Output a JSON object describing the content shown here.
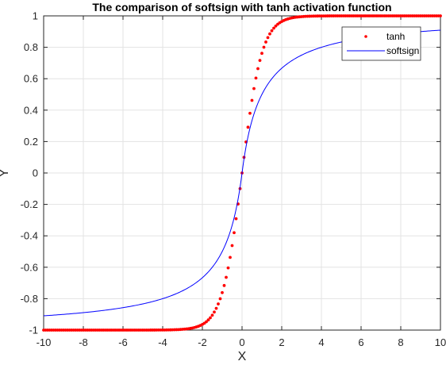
{
  "chart_data": {
    "type": "line",
    "title": "The comparison of softsign with tanh activation function",
    "xlabel": "X",
    "ylabel": "Y",
    "xlim": [
      -10,
      10
    ],
    "ylim": [
      -1,
      1
    ],
    "xticks": [
      -10,
      -8,
      -6,
      -4,
      -2,
      0,
      2,
      4,
      6,
      8,
      10
    ],
    "yticks": [
      -1,
      -0.8,
      -0.6,
      -0.4,
      -0.2,
      0,
      0.2,
      0.4,
      0.6,
      0.8,
      1
    ],
    "xtick_labels": [
      "-10",
      "-8",
      "-6",
      "-4",
      "-2",
      "0",
      "2",
      "4",
      "6",
      "8",
      "10"
    ],
    "ytick_labels": [
      "-1",
      "-0.8",
      "-0.6",
      "-0.4",
      "-0.2",
      "0",
      "0.2",
      "0.4",
      "0.6",
      "0.8",
      "1"
    ],
    "grid": true,
    "legend_position": "top-right",
    "series": [
      {
        "name": "tanh",
        "style": "dots",
        "color": "#ff0000",
        "function": "tanh(x)",
        "x_range": [
          -10,
          10
        ],
        "x_step": 0.1
      },
      {
        "name": "softsign",
        "style": "line",
        "color": "#0000ff",
        "function": "x / (1 + |x|)",
        "x_range": [
          -10,
          10
        ],
        "x_step": 0.05
      }
    ]
  }
}
